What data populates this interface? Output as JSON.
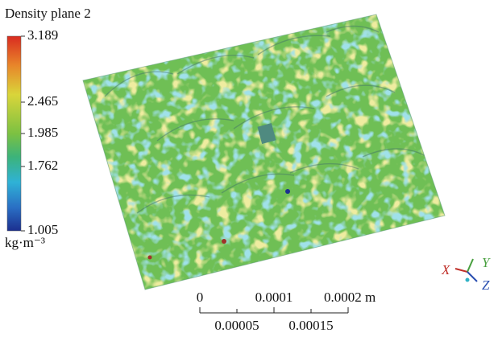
{
  "legend": {
    "title": "Density plane 2",
    "ticks": [
      "3.189",
      "2.465",
      "1.985",
      "1.762",
      "1.005"
    ],
    "unit": "kg·m⁻³"
  },
  "scale_bar": {
    "top_labels": [
      "0",
      "0.0001",
      "0.0002 m"
    ],
    "bottom_labels": [
      "0.00005",
      "0.00015"
    ]
  },
  "triad": {
    "x": "X",
    "y": "Y",
    "z": "Z"
  }
}
